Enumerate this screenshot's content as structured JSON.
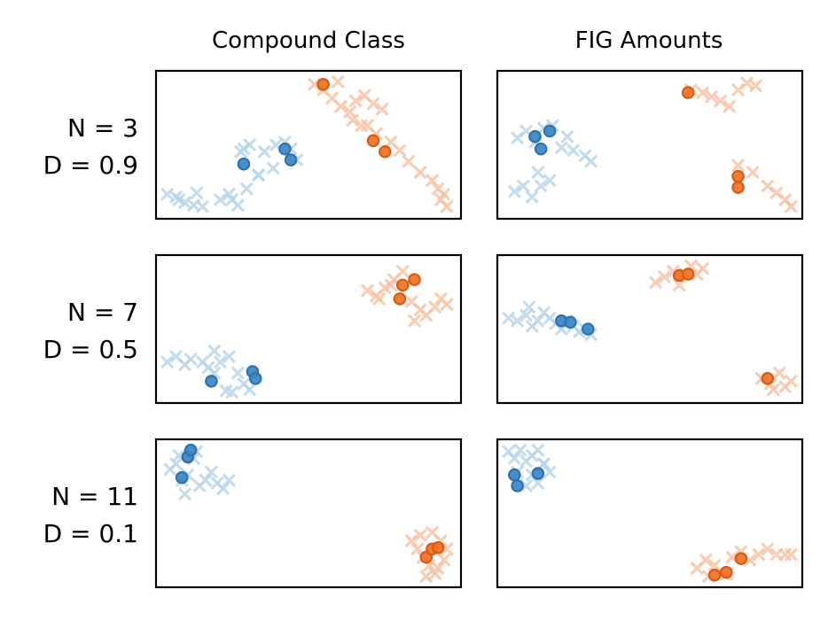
{
  "column_titles": [
    "Compound Class",
    "FIG Amounts"
  ],
  "row_labels": [
    {
      "n": "N = 3",
      "d": "D = 0.9"
    },
    {
      "n": "N = 7",
      "d": "D = 0.5"
    },
    {
      "n": "N = 11",
      "d": "D = 0.1"
    }
  ],
  "colors": {
    "blue_point": "#3a86c6",
    "blue_edge": "#2e73b0",
    "orange_point": "#f07123",
    "orange_edge": "#d85c13",
    "blue_background": "#b6d4ea",
    "orange_background": "#f8c0a2",
    "frame": "#000000"
  },
  "chart_data": [
    {
      "type": "scatter",
      "row": 0,
      "col": 0,
      "xlim": [
        0,
        1
      ],
      "ylim": [
        0,
        1
      ],
      "axis_ticks": false,
      "series": [
        {
          "class": "blue",
          "marker": "x",
          "x": [
            0.02,
            0.05,
            0.08,
            0.11,
            0.14,
            0.2,
            0.23,
            0.26,
            0.29,
            0.33,
            0.27,
            0.3,
            0.35,
            0.39,
            0.42,
            0.44,
            0.46,
            0.38,
            0.33,
            0.28,
            0.24,
            0.12,
            0.06
          ],
          "y": [
            0.14,
            0.12,
            0.08,
            0.06,
            0.05,
            0.1,
            0.14,
            0.06,
            0.18,
            0.28,
            0.45,
            0.5,
            0.45,
            0.5,
            0.52,
            0.47,
            0.39,
            0.33,
            0.28,
            0.47,
            0.1,
            0.15,
            0.1
          ]
        },
        {
          "class": "orange",
          "marker": "x",
          "x": [
            0.52,
            0.55,
            0.58,
            0.61,
            0.64,
            0.66,
            0.69,
            0.72,
            0.75,
            0.68,
            0.73,
            0.78,
            0.81,
            0.84,
            0.88,
            0.92,
            0.94,
            0.96,
            0.97,
            0.95,
            0.65,
            0.6,
            0.7
          ],
          "y": [
            0.94,
            0.9,
            0.84,
            0.78,
            0.74,
            0.82,
            0.86,
            0.8,
            0.76,
            0.64,
            0.58,
            0.52,
            0.46,
            0.38,
            0.3,
            0.24,
            0.18,
            0.14,
            0.05,
            0.1,
            0.68,
            0.96,
            0.64
          ]
        },
        {
          "class": "blue",
          "marker": "o",
          "x": [
            0.28,
            0.42,
            0.44
          ],
          "y": [
            0.36,
            0.47,
            0.39
          ]
        },
        {
          "class": "orange",
          "marker": "o",
          "x": [
            0.55,
            0.72,
            0.76
          ],
          "y": [
            0.94,
            0.53,
            0.45
          ]
        }
      ]
    },
    {
      "type": "scatter",
      "row": 0,
      "col": 1,
      "xlim": [
        0,
        1
      ],
      "ylim": [
        0,
        1
      ],
      "axis_ticks": false,
      "series": [
        {
          "class": "blue",
          "marker": "x",
          "x": [
            0.05,
            0.08,
            0.11,
            0.14,
            0.17,
            0.2,
            0.24,
            0.28,
            0.3,
            0.22,
            0.07,
            0.04,
            0.1,
            0.13,
            0.16,
            0.12
          ],
          "y": [
            0.55,
            0.6,
            0.52,
            0.62,
            0.64,
            0.48,
            0.46,
            0.42,
            0.38,
            0.56,
            0.2,
            0.16,
            0.12,
            0.2,
            0.24,
            0.3
          ]
        },
        {
          "class": "orange",
          "marker": "x",
          "x": [
            0.64,
            0.68,
            0.71,
            0.74,
            0.77,
            0.8,
            0.83,
            0.86,
            0.9,
            0.93,
            0.96,
            0.98,
            0.85,
            0.8
          ],
          "y": [
            0.9,
            0.88,
            0.85,
            0.82,
            0.78,
            0.9,
            0.95,
            0.93,
            0.2,
            0.15,
            0.1,
            0.05,
            0.3,
            0.35
          ]
        },
        {
          "class": "blue",
          "marker": "o",
          "x": [
            0.11,
            0.13,
            0.16
          ],
          "y": [
            0.56,
            0.47,
            0.6
          ]
        },
        {
          "class": "orange",
          "marker": "o",
          "x": [
            0.63,
            0.8,
            0.8
          ],
          "y": [
            0.88,
            0.27,
            0.19
          ]
        }
      ]
    },
    {
      "type": "scatter",
      "row": 1,
      "col": 0,
      "xlim": [
        0,
        1
      ],
      "ylim": [
        0,
        1
      ],
      "axis_ticks": false,
      "series": [
        {
          "class": "blue",
          "marker": "x",
          "x": [
            0.02,
            0.05,
            0.08,
            0.1,
            0.14,
            0.18,
            0.2,
            0.23,
            0.26,
            0.28,
            0.3,
            0.22,
            0.24,
            0.18,
            0.16
          ],
          "y": [
            0.26,
            0.3,
            0.24,
            0.28,
            0.26,
            0.18,
            0.26,
            0.3,
            0.18,
            0.1,
            0.06,
            0.05,
            0.04,
            0.34,
            0.22
          ]
        },
        {
          "class": "orange",
          "marker": "x",
          "x": [
            0.7,
            0.73,
            0.76,
            0.79,
            0.82,
            0.85,
            0.88,
            0.9,
            0.93,
            0.95,
            0.97,
            0.86,
            0.78,
            0.74
          ],
          "y": [
            0.78,
            0.74,
            0.8,
            0.86,
            0.92,
            0.7,
            0.64,
            0.6,
            0.66,
            0.72,
            0.68,
            0.56,
            0.82,
            0.72
          ]
        },
        {
          "class": "blue",
          "marker": "o",
          "x": [
            0.17,
            0.31,
            0.32
          ],
          "y": [
            0.12,
            0.19,
            0.14
          ]
        },
        {
          "class": "orange",
          "marker": "o",
          "x": [
            0.81,
            0.82,
            0.86
          ],
          "y": [
            0.72,
            0.82,
            0.86
          ]
        }
      ]
    },
    {
      "type": "scatter",
      "row": 1,
      "col": 1,
      "xlim": [
        0,
        1
      ],
      "ylim": [
        0,
        1
      ],
      "axis_ticks": false,
      "series": [
        {
          "class": "blue",
          "marker": "x",
          "x": [
            0.02,
            0.05,
            0.08,
            0.1,
            0.12,
            0.14,
            0.16,
            0.18,
            0.2,
            0.22,
            0.24,
            0.26,
            0.28,
            0.3,
            0.09
          ],
          "y": [
            0.58,
            0.56,
            0.6,
            0.52,
            0.56,
            0.62,
            0.58,
            0.54,
            0.5,
            0.56,
            0.52,
            0.48,
            0.5,
            0.46,
            0.66
          ]
        },
        {
          "class": "orange",
          "marker": "x",
          "x": [
            0.52,
            0.55,
            0.58,
            0.6,
            0.62,
            0.64,
            0.66,
            0.68,
            0.88,
            0.91,
            0.94,
            0.96,
            0.98,
            0.92
          ],
          "y": [
            0.84,
            0.88,
            0.92,
            0.82,
            0.9,
            0.96,
            0.9,
            0.94,
            0.14,
            0.1,
            0.18,
            0.08,
            0.12,
            0.06
          ]
        },
        {
          "class": "blue",
          "marker": "o",
          "x": [
            0.2,
            0.23,
            0.29
          ],
          "y": [
            0.56,
            0.55,
            0.5
          ]
        },
        {
          "class": "orange",
          "marker": "o",
          "x": [
            0.6,
            0.63,
            0.9
          ],
          "y": [
            0.89,
            0.9,
            0.14
          ]
        }
      ]
    },
    {
      "type": "scatter",
      "row": 2,
      "col": 0,
      "xlim": [
        0,
        1
      ],
      "ylim": [
        0,
        1
      ],
      "axis_ticks": false,
      "series": [
        {
          "class": "blue",
          "marker": "x",
          "x": [
            0.03,
            0.05,
            0.07,
            0.09,
            0.11,
            0.13,
            0.15,
            0.17,
            0.19,
            0.21,
            0.23,
            0.12,
            0.08,
            0.06
          ],
          "y": [
            0.82,
            0.86,
            0.74,
            0.78,
            0.9,
            0.7,
            0.74,
            0.8,
            0.72,
            0.68,
            0.74,
            0.95,
            0.64,
            0.92
          ]
        },
        {
          "class": "orange",
          "marker": "x",
          "x": [
            0.85,
            0.87,
            0.89,
            0.91,
            0.93,
            0.95,
            0.97,
            0.88,
            0.92,
            0.96,
            0.9,
            0.94
          ],
          "y": [
            0.3,
            0.24,
            0.18,
            0.12,
            0.06,
            0.3,
            0.24,
            0.34,
            0.36,
            0.16,
            0.04,
            0.1
          ]
        },
        {
          "class": "blue",
          "marker": "o",
          "x": [
            0.07,
            0.09,
            0.1
          ],
          "y": [
            0.76,
            0.91,
            0.96
          ]
        },
        {
          "class": "orange",
          "marker": "o",
          "x": [
            0.9,
            0.92,
            0.94
          ],
          "y": [
            0.18,
            0.24,
            0.25
          ]
        }
      ]
    },
    {
      "type": "scatter",
      "row": 2,
      "col": 1,
      "xlim": [
        0,
        1
      ],
      "ylim": [
        0,
        1
      ],
      "axis_ticks": false,
      "series": [
        {
          "class": "blue",
          "marker": "x",
          "x": [
            0.02,
            0.04,
            0.06,
            0.08,
            0.1,
            0.12,
            0.14,
            0.16,
            0.05,
            0.1,
            0.14,
            0.08,
            0.12
          ],
          "y": [
            0.95,
            0.9,
            0.96,
            0.88,
            0.92,
            0.96,
            0.86,
            0.8,
            0.8,
            0.78,
            0.86,
            0.7,
            0.72
          ]
        },
        {
          "class": "orange",
          "marker": "x",
          "x": [
            0.66,
            0.69,
            0.72,
            0.75,
            0.78,
            0.81,
            0.84,
            0.87,
            0.9,
            0.93,
            0.96,
            0.98,
            0.7,
            0.76
          ],
          "y": [
            0.1,
            0.16,
            0.12,
            0.06,
            0.18,
            0.22,
            0.16,
            0.2,
            0.24,
            0.2,
            0.2,
            0.2,
            0.04,
            0.06
          ]
        },
        {
          "class": "blue",
          "marker": "o",
          "x": [
            0.04,
            0.05,
            0.12
          ],
          "y": [
            0.78,
            0.7,
            0.79
          ]
        },
        {
          "class": "orange",
          "marker": "o",
          "x": [
            0.72,
            0.76,
            0.81
          ],
          "y": [
            0.05,
            0.07,
            0.17
          ]
        }
      ]
    }
  ]
}
